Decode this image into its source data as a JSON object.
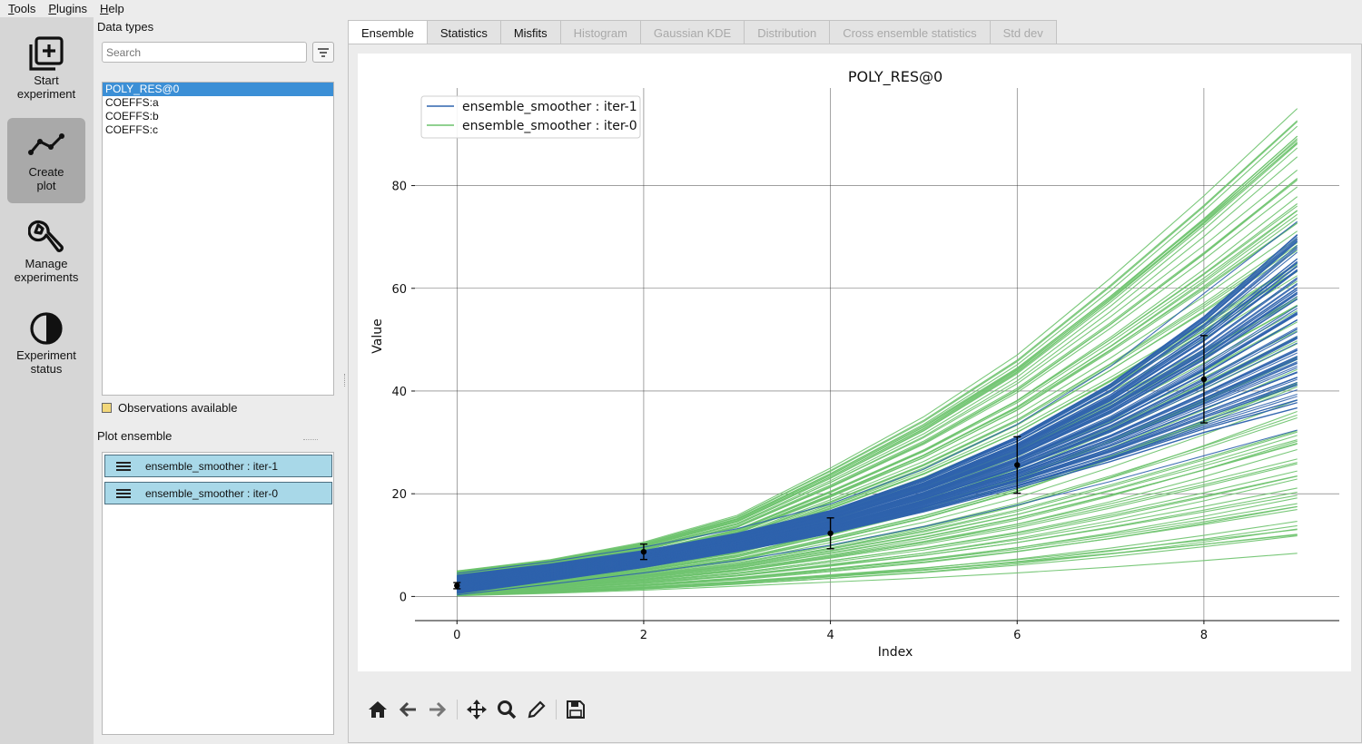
{
  "menu": {
    "items": [
      "Tools",
      "Plugins",
      "Help"
    ]
  },
  "nav": [
    {
      "label": "Start\nexperiment",
      "icon": "add-square-icon",
      "active": false
    },
    {
      "label": "Create\nplot",
      "icon": "line-chart-icon",
      "active": true
    },
    {
      "label": "Manage\nexperiments",
      "icon": "wrench-icon",
      "active": false
    },
    {
      "label": "Experiment\nstatus",
      "icon": "half-circle-icon",
      "active": false
    }
  ],
  "data_types": {
    "title": "Data types",
    "search_placeholder": "Search",
    "items": [
      "POLY_RES@0",
      "COEFFS:a",
      "COEFFS:b",
      "COEFFS:c"
    ],
    "selected": 0,
    "observations_label": "Observations available",
    "observations_color": "#f2d77a"
  },
  "plot_ensemble": {
    "title": "Plot ensemble",
    "items": [
      "ensemble_smoother : iter-1",
      "ensemble_smoother : iter-0"
    ]
  },
  "tabs": [
    {
      "label": "Ensemble",
      "state": "active"
    },
    {
      "label": "Statistics",
      "state": "enabled"
    },
    {
      "label": "Misfits",
      "state": "enabled"
    },
    {
      "label": "Histogram",
      "state": "disabled"
    },
    {
      "label": "Gaussian KDE",
      "state": "disabled"
    },
    {
      "label": "Distribution",
      "state": "disabled"
    },
    {
      "label": "Cross ensemble statistics",
      "state": "disabled"
    },
    {
      "label": "Std dev",
      "state": "disabled"
    }
  ],
  "toolbar": [
    "home-icon",
    "back-arrow-icon",
    "forward-arrow-icon",
    "pan-icon",
    "zoom-icon",
    "edit-icon",
    "save-icon"
  ],
  "chart_data": {
    "type": "line",
    "title": "POLY_RES@0",
    "xlabel": "Index",
    "ylabel": "Value",
    "xlim": [
      -0.45,
      9.45
    ],
    "ylim": [
      -4.7,
      99
    ],
    "xticks": [
      0,
      2,
      4,
      6,
      8
    ],
    "yticks": [
      0,
      20,
      40,
      60,
      80
    ],
    "grid": true,
    "legend_position": "top-left",
    "x": [
      0,
      1,
      2,
      3,
      4,
      5,
      6,
      7,
      8,
      9
    ],
    "series": [
      {
        "name": "ensemble_smoother : iter-1",
        "color": "#2f63ad",
        "ensemble_size": 100,
        "band_min": [
          0.5,
          3.0,
          5.6,
          8.7,
          12.2,
          16.4,
          21.0,
          26.1,
          31.7,
          36.4
        ],
        "band_max": [
          4.2,
          6.4,
          9.0,
          12.4,
          16.9,
          23.3,
          31.5,
          42.0,
          55.5,
          72.0
        ],
        "outlier_min": [
          0.3,
          2.4,
          4.6,
          7.0,
          10.0,
          13.6,
          17.8,
          22.4,
          27.4,
          32.4
        ],
        "outlier_max": [
          4.5,
          6.8,
          9.6,
          13.2,
          18.0,
          24.8,
          33.5,
          44.8,
          59.0,
          73.0
        ]
      },
      {
        "name": "ensemble_smoother : iter-0",
        "color": "#6cc26c",
        "ensemble_size": 100,
        "band_min": [
          0.1,
          0.6,
          1.2,
          2.0,
          2.8,
          3.6,
          4.6,
          5.7,
          7.0,
          8.4
        ],
        "band_max": [
          5.0,
          7.2,
          10.6,
          15.8,
          25.0,
          35.0,
          47.0,
          62.0,
          78.0,
          95.0
        ]
      }
    ],
    "observations": {
      "x": [
        0,
        2,
        4,
        6,
        8
      ],
      "y": [
        2.1,
        8.7,
        12.3,
        25.6,
        42.3
      ],
      "err": [
        0.6,
        1.5,
        3.0,
        5.5,
        8.5
      ],
      "color": "#000000"
    }
  }
}
